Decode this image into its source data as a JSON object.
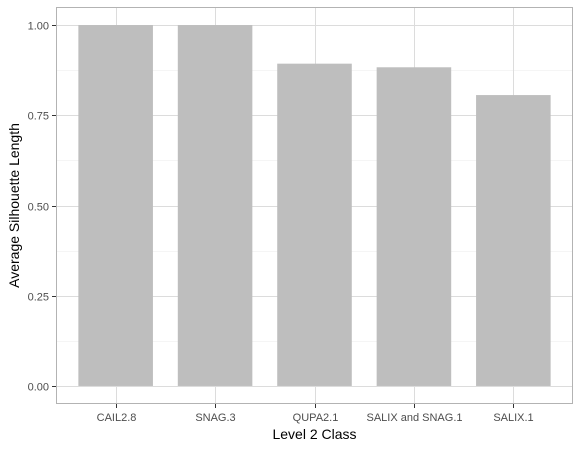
{
  "chart_data": {
    "type": "bar",
    "title": "",
    "xlabel": "Level 2 Class",
    "ylabel": "Average Silhouette Length",
    "categories": [
      "CAIL2.8",
      "SNAG.3",
      "QUPA2.1",
      "SALIX and SNAG.1",
      "SALIX.1"
    ],
    "values": [
      1.0,
      1.0,
      0.893,
      0.883,
      0.806
    ],
    "ylim": [
      0,
      1.0
    ],
    "yticks": [
      0.0,
      0.25,
      0.5,
      0.75,
      1.0
    ],
    "ytick_labels": [
      "0.00",
      "0.25",
      "0.50",
      "0.75",
      "1.00"
    ],
    "bar_color": "#bebebe",
    "grid": true,
    "legend": "none"
  }
}
